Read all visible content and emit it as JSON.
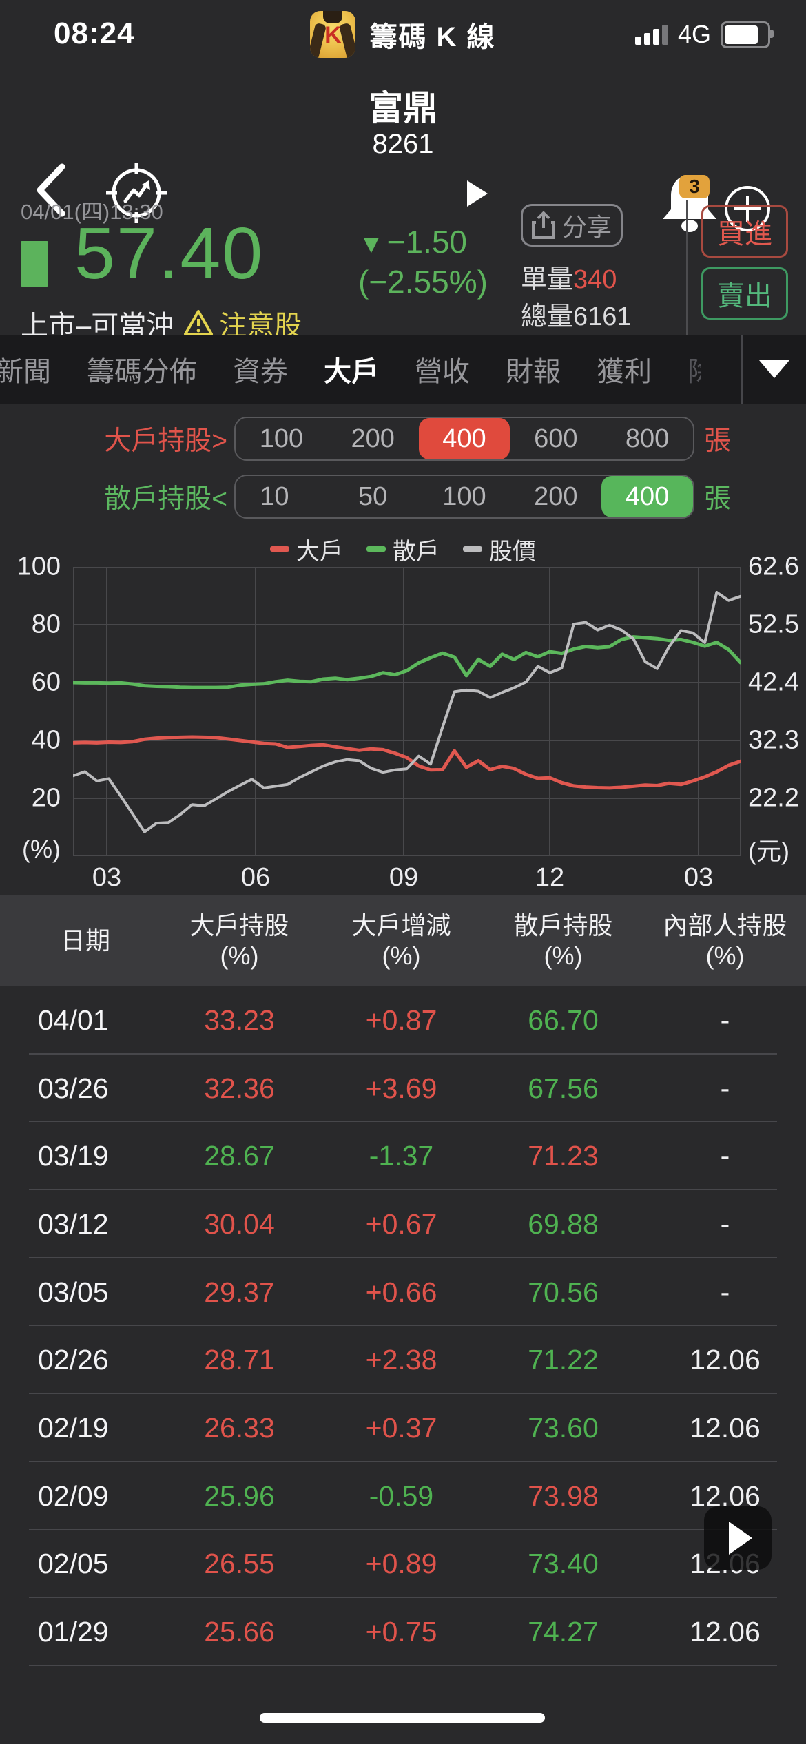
{
  "status_bar": {
    "time": "08:24",
    "app_title": "籌碼 K 線",
    "network": "4G"
  },
  "header": {
    "stock_name": "富鼎",
    "stock_code": "8261",
    "notification_count": "3"
  },
  "quote": {
    "timestamp": "04/01(四)13:30",
    "price": "57.40",
    "change_arrow": "▼",
    "change_value": "−1.50",
    "change_percent": "(−2.55%)",
    "market_status": "上市–可當沖",
    "alert_label": "注意股",
    "share_label": "分享",
    "unit_volume_label": "單量",
    "unit_volume_value": "340",
    "total_volume_label": "總量",
    "total_volume_value": "6161",
    "buy_label": "買進",
    "sell_label": "賣出"
  },
  "tabs": {
    "items": [
      {
        "label": "新聞",
        "active": false,
        "partial": false
      },
      {
        "label": "籌碼分佈",
        "active": false,
        "partial": false
      },
      {
        "label": "資券",
        "active": false,
        "partial": false
      },
      {
        "label": "大戶",
        "active": true,
        "partial": false
      },
      {
        "label": "營收",
        "active": false,
        "partial": false
      },
      {
        "label": "財報",
        "active": false,
        "partial": false
      },
      {
        "label": "獲利",
        "active": false,
        "partial": false
      },
      {
        "label": "除",
        "active": false,
        "partial": true
      }
    ]
  },
  "filters": {
    "rows": [
      {
        "label": "大戶持股>",
        "theme": "red",
        "options": [
          "100",
          "200",
          "400",
          "600",
          "800"
        ],
        "selected": "400",
        "unit": "張",
        "first_clipped": false
      },
      {
        "label": "散戶持股<",
        "theme": "green",
        "options": [
          "10",
          "50",
          "100",
          "200",
          "400"
        ],
        "selected": "400",
        "unit": "張",
        "first_clipped": true
      }
    ]
  },
  "chart_data": {
    "type": "line",
    "x_ticks": [
      "03",
      "06",
      "09",
      "12",
      "03"
    ],
    "left_axis": {
      "unit": "(%)",
      "ticks": [
        "100",
        "80",
        "60",
        "40",
        "20"
      ],
      "min": 0,
      "max": 100
    },
    "right_axis": {
      "unit": "(元)",
      "ticks": [
        "62.6",
        "52.5",
        "42.4",
        "32.3",
        "22.2"
      ]
    },
    "legend": [
      {
        "name": "大戶",
        "color": "#e05850"
      },
      {
        "name": "散戶",
        "color": "#5cb85c"
      },
      {
        "name": "股價",
        "color": "#bcbcbe"
      }
    ],
    "series": [
      {
        "name": "大戶",
        "color": "#e05850",
        "width": 5,
        "values": [
          39.2,
          39.3,
          39.2,
          39.4,
          39.3,
          39.6,
          40.4,
          40.8,
          41.0,
          41.1,
          41.2,
          41.1,
          41.0,
          40.5,
          40.0,
          39.5,
          39.0,
          38.8,
          37.6,
          37.9,
          38.3,
          38.5,
          37.8,
          37.2,
          36.6,
          37.1,
          36.8,
          35.6,
          34.1,
          31.2,
          29.8,
          29.9,
          36.4,
          30.7,
          33.0,
          29.9,
          31.1,
          30.3,
          28.3,
          26.9,
          27.1,
          25.4,
          24.3,
          23.9,
          23.7,
          23.6,
          23.8,
          24.2,
          24.6,
          24.4,
          25.2,
          24.8,
          26.0,
          27.4,
          29.2,
          31.4,
          32.8
        ]
      },
      {
        "name": "散戶",
        "color": "#5cb85c",
        "width": 5,
        "values": [
          60.0,
          59.9,
          59.9,
          59.8,
          59.9,
          59.5,
          58.9,
          58.7,
          58.6,
          58.4,
          58.3,
          58.3,
          58.3,
          58.4,
          59.1,
          59.4,
          59.6,
          60.3,
          60.8,
          60.4,
          60.3,
          61.2,
          61.5,
          61.0,
          61.5,
          62.1,
          63.4,
          62.7,
          64.1,
          66.8,
          68.6,
          70.2,
          68.8,
          62.4,
          68.0,
          65.6,
          69.8,
          68.0,
          70.4,
          68.9,
          70.7,
          70.1,
          71.6,
          72.5,
          72.1,
          72.4,
          74.9,
          75.8,
          75.5,
          75.2,
          74.6,
          74.9,
          73.9,
          72.6,
          73.9,
          71.4,
          66.9
        ]
      },
      {
        "name": "股價",
        "color": "#bcbcbe",
        "width": 4,
        "values": [
          27.8,
          29.2,
          26.0,
          26.8,
          20.8,
          14.6,
          8.4,
          11.4,
          11.6,
          14.4,
          17.8,
          17.4,
          19.8,
          22.3,
          24.5,
          26.6,
          23.6,
          24.2,
          24.8,
          27.2,
          29.2,
          31.2,
          32.6,
          33.4,
          33.0,
          30.4,
          29.0,
          29.8,
          30.2,
          34.6,
          31.8,
          44.6,
          56.8,
          57.4,
          57.0,
          54.8,
          56.6,
          58.2,
          60.2,
          65.6,
          63.4,
          65.0,
          80.2,
          80.8,
          78.2,
          79.8,
          78.2,
          75.2,
          67.2,
          64.8,
          72.4,
          78.0,
          77.2,
          73.8,
          91.2,
          88.4,
          89.8
        ]
      }
    ]
  },
  "table": {
    "headers": [
      {
        "line1": "日期",
        "line2": ""
      },
      {
        "line1": "大戶持股",
        "line2": "(%)"
      },
      {
        "line1": "大戶增減",
        "line2": "(%)"
      },
      {
        "line1": "散戶持股",
        "line2": "(%)"
      },
      {
        "line1": "內部人持股",
        "line2": "(%)"
      }
    ],
    "rows": [
      {
        "date": "04/01",
        "cells": [
          [
            "33.23",
            "red"
          ],
          [
            "+0.87",
            "red"
          ],
          [
            "66.70",
            "green"
          ],
          [
            "-",
            "white"
          ]
        ]
      },
      {
        "date": "03/26",
        "cells": [
          [
            "32.36",
            "red"
          ],
          [
            "+3.69",
            "red"
          ],
          [
            "67.56",
            "green"
          ],
          [
            "-",
            "white"
          ]
        ]
      },
      {
        "date": "03/19",
        "cells": [
          [
            "28.67",
            "green"
          ],
          [
            "-1.37",
            "green"
          ],
          [
            "71.23",
            "red"
          ],
          [
            "-",
            "white"
          ]
        ]
      },
      {
        "date": "03/12",
        "cells": [
          [
            "30.04",
            "red"
          ],
          [
            "+0.67",
            "red"
          ],
          [
            "69.88",
            "green"
          ],
          [
            "-",
            "white"
          ]
        ]
      },
      {
        "date": "03/05",
        "cells": [
          [
            "29.37",
            "red"
          ],
          [
            "+0.66",
            "red"
          ],
          [
            "70.56",
            "green"
          ],
          [
            "-",
            "white"
          ]
        ]
      },
      {
        "date": "02/26",
        "cells": [
          [
            "28.71",
            "red"
          ],
          [
            "+2.38",
            "red"
          ],
          [
            "71.22",
            "green"
          ],
          [
            "12.06",
            "white"
          ]
        ]
      },
      {
        "date": "02/19",
        "cells": [
          [
            "26.33",
            "red"
          ],
          [
            "+0.37",
            "red"
          ],
          [
            "73.60",
            "green"
          ],
          [
            "12.06",
            "white"
          ]
        ]
      },
      {
        "date": "02/09",
        "cells": [
          [
            "25.96",
            "green"
          ],
          [
            "-0.59",
            "green"
          ],
          [
            "73.98",
            "red"
          ],
          [
            "12.06",
            "white"
          ]
        ]
      },
      {
        "date": "02/05",
        "cells": [
          [
            "26.55",
            "red"
          ],
          [
            "+0.89",
            "red"
          ],
          [
            "73.40",
            "green"
          ],
          [
            "12.06",
            "white"
          ]
        ]
      },
      {
        "date": "01/29",
        "cells": [
          [
            "25.66",
            "red"
          ],
          [
            "+0.75",
            "red"
          ],
          [
            "74.27",
            "green"
          ],
          [
            "12.06",
            "white"
          ]
        ]
      }
    ]
  },
  "colors": {
    "up_red": "#e0534b",
    "down_green": "#5cb35c",
    "alert_yellow": "#e3d44f",
    "badge_orange": "#e2a23c",
    "grid": "#48484b"
  }
}
